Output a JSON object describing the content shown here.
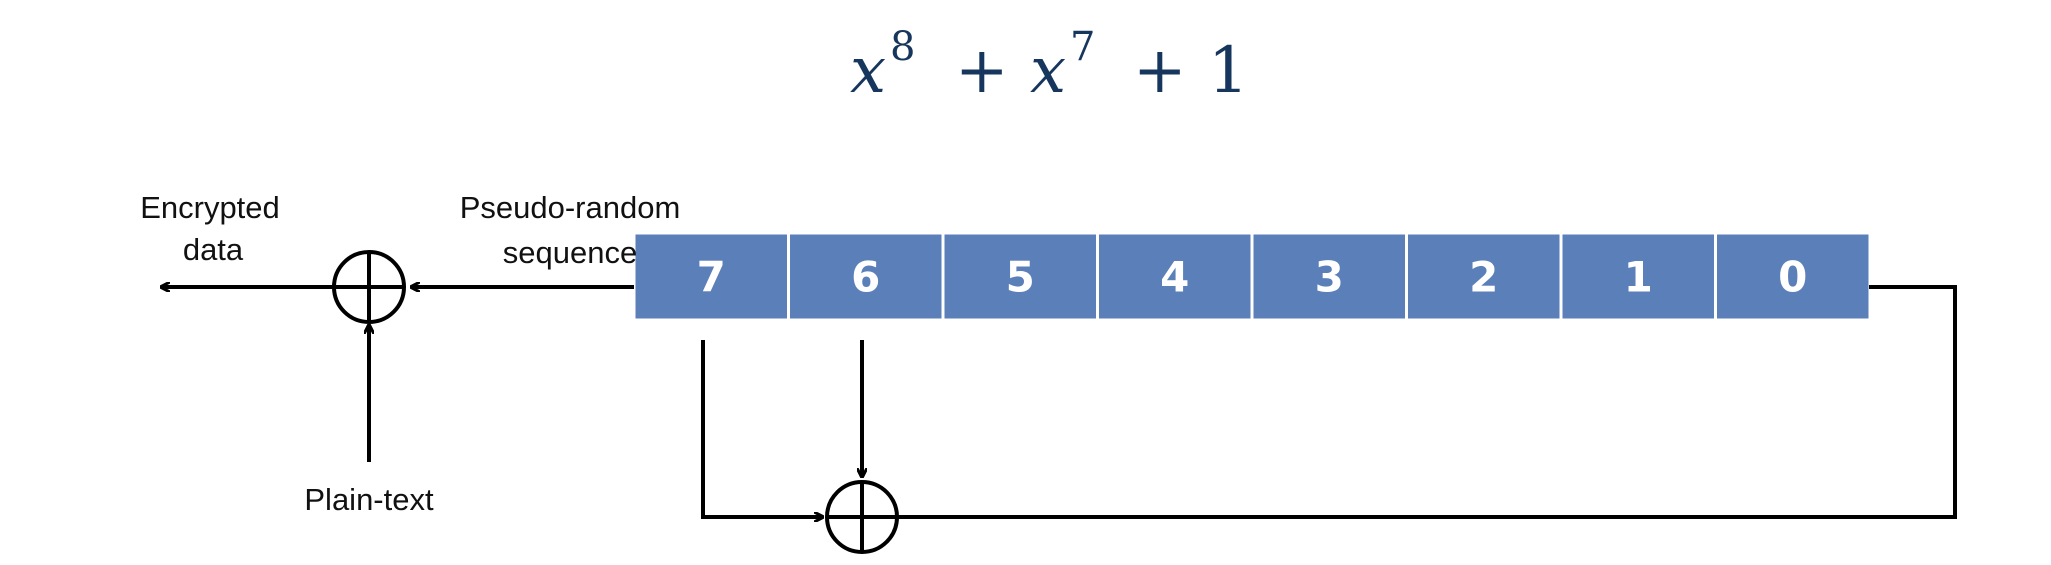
{
  "polynomial": {
    "terms": [
      {
        "base": "x",
        "exp": "8"
      },
      {
        "base": "x",
        "exp": "7"
      }
    ],
    "plus": "+",
    "constant": "1"
  },
  "labels": {
    "output_line1": "Encrypted",
    "output_line2": "data",
    "sequence_line1": "Pseudo-random",
    "sequence_line2": "sequence",
    "input": "Plain-text"
  },
  "register": {
    "cells": [
      "7",
      "6",
      "5",
      "4",
      "3",
      "2",
      "1",
      "0"
    ],
    "color": "#5b7fb8",
    "taps": [
      "7",
      "6"
    ]
  }
}
